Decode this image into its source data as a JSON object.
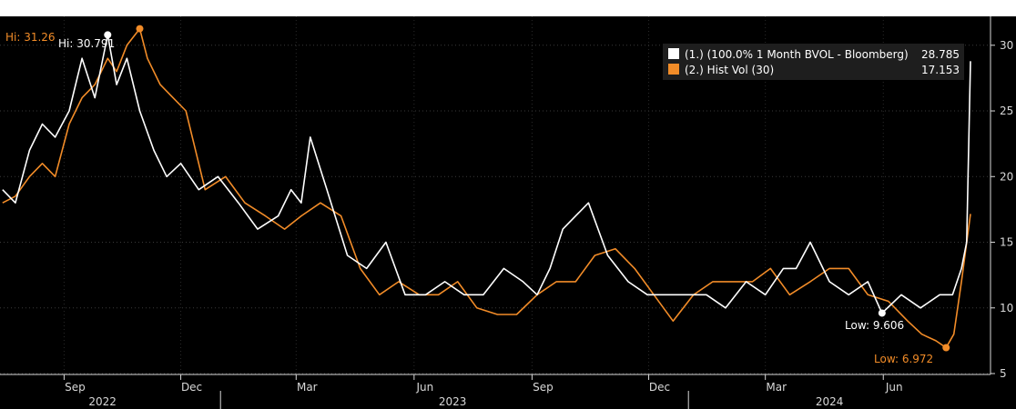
{
  "colors": {
    "background": "#000000",
    "white_series": "#ffffff",
    "orange_series": "#f28c28",
    "axis": "#d8d8d8"
  },
  "chart_data": {
    "type": "line",
    "y_axis": {
      "position": "right",
      "ylim": [
        5,
        32.2
      ],
      "ticks": [
        5,
        10,
        15,
        20,
        25,
        30
      ]
    },
    "x_axis": {
      "month_ticks": [
        "Sep",
        "Dec",
        "Mar",
        "Jun",
        "Sep",
        "Dec",
        "Mar",
        "Jun"
      ],
      "years": [
        "2022",
        "2023",
        "2024"
      ]
    },
    "legend": {
      "placement": "top-right",
      "entries": [
        {
          "label": "(1.)  (100.0% 1 Month BVOL - Bloomberg)",
          "value": "28.785"
        },
        {
          "label": "(2.) Hist Vol (30)",
          "value": "17.153"
        }
      ]
    },
    "annotations": {
      "white_hi": "Hi: 30.791",
      "orange_hi": "Hi: 31.26",
      "white_low": "Low: 9.606",
      "orange_low": "Low: 6.972"
    },
    "series": [
      {
        "name": "(100.0% 1 Month BVOL - Bloomberg)",
        "last": 28.785,
        "hi": 30.791,
        "low": 9.606,
        "x": [
          "2022-07-15",
          "2022-07-25",
          "2022-08-05",
          "2022-08-15",
          "2022-08-25",
          "2022-09-05",
          "2022-09-15",
          "2022-09-25",
          "2022-10-05",
          "2022-10-12",
          "2022-10-20",
          "2022-10-30",
          "2022-11-10",
          "2022-11-20",
          "2022-12-01",
          "2022-12-15",
          "2022-12-30",
          "2023-01-15",
          "2023-01-30",
          "2023-02-15",
          "2023-02-25",
          "2023-03-05",
          "2023-03-12",
          "2023-03-25",
          "2023-04-10",
          "2023-04-25",
          "2023-05-10",
          "2023-05-25",
          "2023-06-10",
          "2023-06-25",
          "2023-07-10",
          "2023-07-25",
          "2023-08-10",
          "2023-08-25",
          "2023-09-05",
          "2023-09-15",
          "2023-09-25",
          "2023-10-05",
          "2023-10-15",
          "2023-10-30",
          "2023-11-15",
          "2023-11-30",
          "2023-12-15",
          "2023-12-30",
          "2024-01-15",
          "2024-01-30",
          "2024-02-15",
          "2024-03-01",
          "2024-03-15",
          "2024-03-25",
          "2024-04-05",
          "2024-04-20",
          "2024-05-05",
          "2024-05-20",
          "2024-05-31",
          "2024-06-15",
          "2024-06-30",
          "2024-07-15",
          "2024-07-25",
          "2024-08-01",
          "2024-08-05",
          "2024-08-08"
        ],
        "values": [
          19,
          18,
          22,
          24,
          23,
          25,
          29,
          26,
          30.791,
          27,
          29,
          25,
          22,
          20,
          21,
          19,
          20,
          18,
          16,
          17,
          19,
          18,
          23,
          19,
          14,
          13,
          15,
          11,
          11,
          12,
          11,
          11,
          13,
          12,
          11,
          13,
          16,
          17,
          18,
          14,
          12,
          11,
          11,
          11,
          11,
          10,
          12,
          11,
          13,
          13,
          15,
          12,
          11,
          12,
          9.606,
          11,
          10,
          11,
          11,
          13,
          15,
          28.785
        ]
      },
      {
        "name": "Hist Vol (30)",
        "last": 17.153,
        "hi": 31.26,
        "low": 6.972,
        "x": [
          "2022-07-15",
          "2022-07-25",
          "2022-08-05",
          "2022-08-15",
          "2022-08-25",
          "2022-09-05",
          "2022-09-15",
          "2022-09-25",
          "2022-10-05",
          "2022-10-12",
          "2022-10-20",
          "2022-10-30",
          "2022-11-05",
          "2022-11-15",
          "2022-11-25",
          "2022-12-05",
          "2022-12-20",
          "2023-01-05",
          "2023-01-20",
          "2023-02-05",
          "2023-02-20",
          "2023-03-05",
          "2023-03-20",
          "2023-04-05",
          "2023-04-20",
          "2023-05-05",
          "2023-05-20",
          "2023-06-05",
          "2023-06-20",
          "2023-07-05",
          "2023-07-20",
          "2023-08-05",
          "2023-08-20",
          "2023-09-05",
          "2023-09-20",
          "2023-10-05",
          "2023-10-20",
          "2023-11-05",
          "2023-11-20",
          "2023-12-05",
          "2023-12-20",
          "2024-01-05",
          "2024-01-20",
          "2024-02-05",
          "2024-02-20",
          "2024-03-05",
          "2024-03-20",
          "2024-04-05",
          "2024-04-20",
          "2024-05-05",
          "2024-05-20",
          "2024-06-05",
          "2024-06-20",
          "2024-07-01",
          "2024-07-12",
          "2024-07-20",
          "2024-07-26",
          "2024-08-01",
          "2024-08-08"
        ],
        "values": [
          18,
          18.5,
          20,
          21,
          20,
          24,
          26,
          27,
          29,
          28,
          30,
          31.26,
          29,
          27,
          26,
          25,
          19,
          20,
          18,
          17,
          16,
          17,
          18,
          17,
          13,
          11,
          12,
          11,
          11,
          12,
          10,
          9.5,
          9.5,
          11,
          12,
          12,
          14,
          14.5,
          13,
          11,
          9,
          11,
          12,
          12,
          12,
          13,
          11,
          12,
          13,
          13,
          11,
          10.5,
          9,
          8,
          7.5,
          6.972,
          8,
          12,
          17.153
        ]
      }
    ]
  }
}
